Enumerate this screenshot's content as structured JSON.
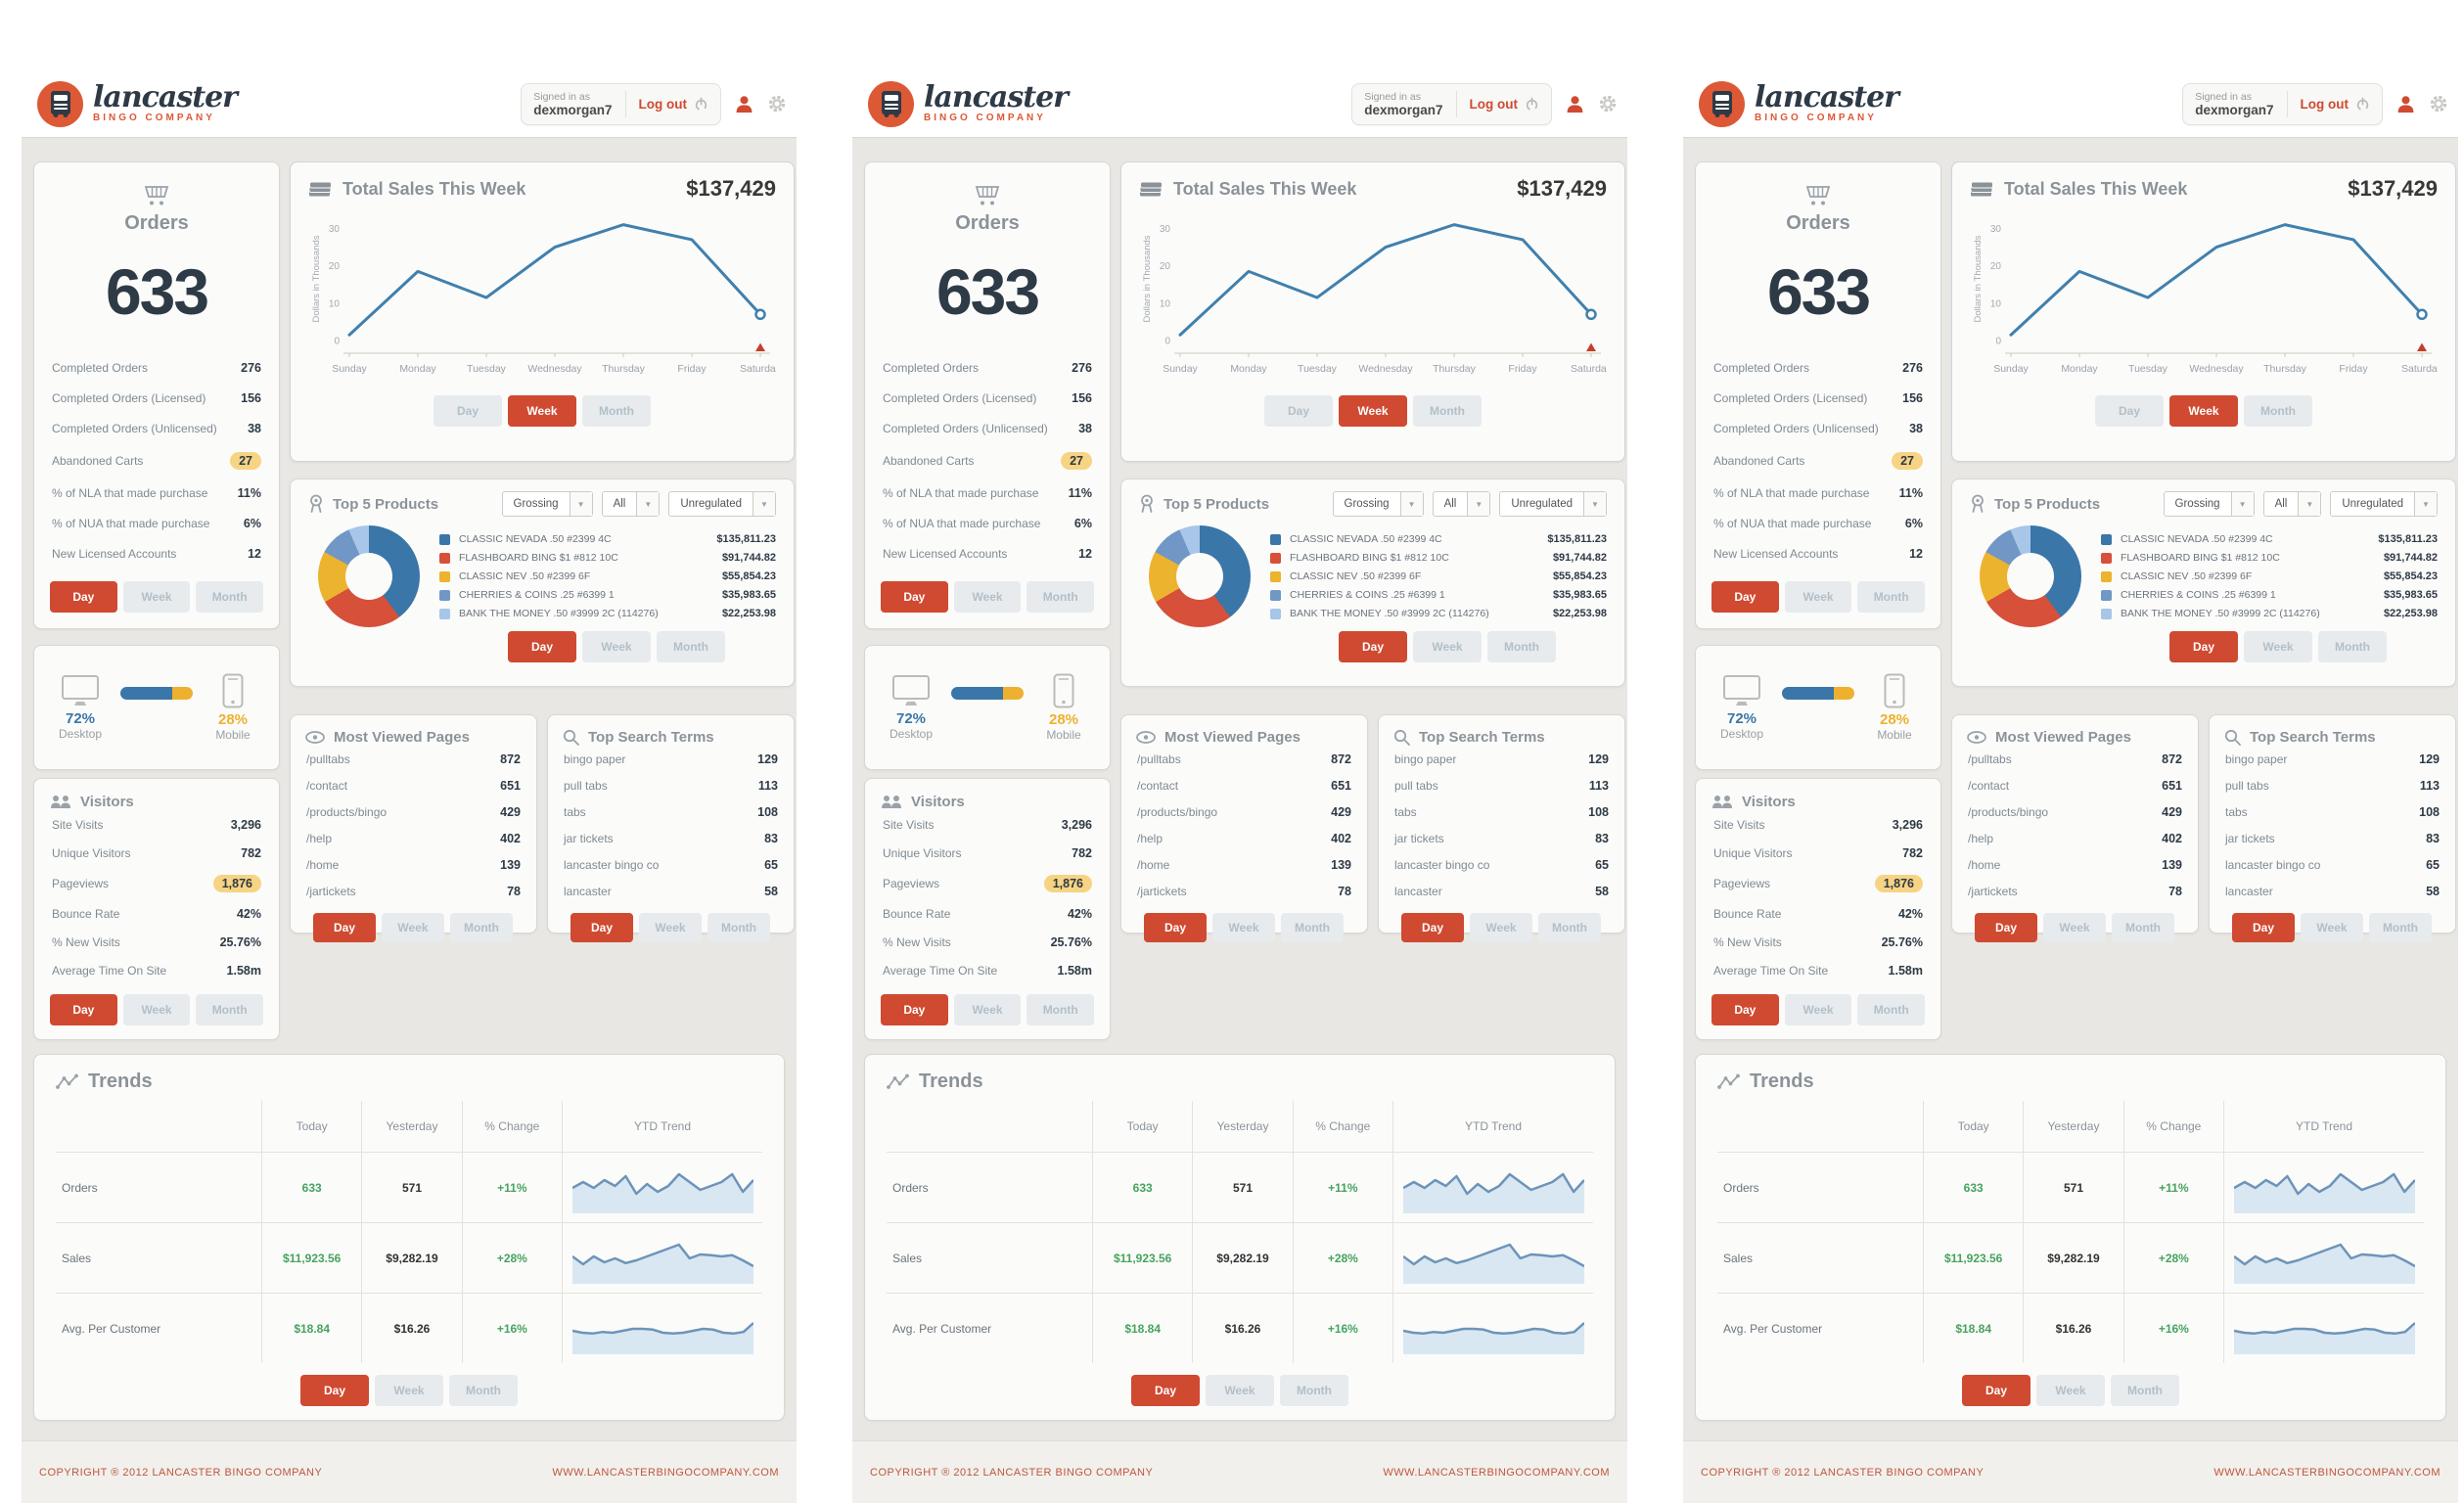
{
  "colors": {
    "accent_red": "#cf4a31",
    "navy": "#2e3a45",
    "chart_blue": "#4080ad",
    "yellow": "#eeb02f",
    "green": "#47a35f",
    "badge_bg": "#f6d483",
    "spark_line": "#6d94b8",
    "spark_fill": "#d9e7f2"
  },
  "header": {
    "brand_name": "lancaster",
    "brand_tagline": "BINGO COMPANY",
    "signed_in_label": "Signed in as",
    "username": "dexmorgan7",
    "logout_label": "Log out"
  },
  "controls": {
    "labels": [
      "Day",
      "Week",
      "Month"
    ]
  },
  "orders": {
    "title": "Orders",
    "total": "633",
    "rows": [
      {
        "label": "Completed Orders",
        "value": "276"
      },
      {
        "label": "Completed Orders (Licensed)",
        "value": "156"
      },
      {
        "label": "Completed Orders (Unlicensed)",
        "value": "38"
      },
      {
        "label": "Abandoned Carts",
        "value": "27",
        "badge": true
      },
      {
        "label": "% of NLA that made purchase",
        "value": "11%"
      },
      {
        "label": "% of NUA that made purchase",
        "value": "6%"
      },
      {
        "label": "New Licensed Accounts",
        "value": "12"
      }
    ],
    "active_control": "Day"
  },
  "total_sales": {
    "title": "Total Sales This Week",
    "amount": "$137,429",
    "active_control": "Week"
  },
  "top_products": {
    "title": "Top 5 Products",
    "filters": [
      "Grossing",
      "All",
      "Unregulated"
    ],
    "items": [
      {
        "name": "CLASSIC NEVADA .50 #2399 4C",
        "value": "$135,811.23",
        "color": "#3a76a8"
      },
      {
        "name": "FLASHBOARD BING $1 #812 10C",
        "value": "$91,744.82",
        "color": "#d6503a"
      },
      {
        "name": "CLASSIC NEV .50 #2399 6F",
        "value": "$55,854.23",
        "color": "#ecb32f"
      },
      {
        "name": "CHERRIES & COINS .25 #6399 1",
        "value": "$35,983.65",
        "color": "#7097c5"
      },
      {
        "name": "BANK THE MONEY .50 #3999 2C (114276)",
        "value": "$22,253.98",
        "color": "#a7c6e8"
      }
    ],
    "active_control": "Day"
  },
  "devices": {
    "desktop_pct": "72%",
    "desktop_label": "Desktop",
    "desktop_value": 72,
    "mobile_pct": "28%",
    "mobile_label": "Mobile",
    "mobile_value": 28
  },
  "visitors": {
    "title": "Visitors",
    "rows": [
      {
        "label": "Site Visits",
        "value": "3,296"
      },
      {
        "label": "Unique Visitors",
        "value": "782"
      },
      {
        "label": "Pageviews",
        "value": "1,876",
        "badge": true
      },
      {
        "label": "Bounce Rate",
        "value": "42%"
      },
      {
        "label": "% New Visits",
        "value": "25.76%"
      },
      {
        "label": "Average Time On Site",
        "value": "1.58m"
      }
    ],
    "active_control": "Day"
  },
  "most_viewed": {
    "title": "Most Viewed Pages",
    "rows": [
      {
        "label": "/pulltabs",
        "value": "872"
      },
      {
        "label": "/contact",
        "value": "651"
      },
      {
        "label": "/products/bingo",
        "value": "429"
      },
      {
        "label": "/help",
        "value": "402"
      },
      {
        "label": "/home",
        "value": "139"
      },
      {
        "label": "/jartickets",
        "value": "78"
      }
    ],
    "active_control": "Day"
  },
  "search_terms": {
    "title": "Top Search Terms",
    "rows": [
      {
        "label": "bingo paper",
        "value": "129"
      },
      {
        "label": "pull tabs",
        "value": "113"
      },
      {
        "label": "tabs",
        "value": "108"
      },
      {
        "label": "jar tickets",
        "value": "83"
      },
      {
        "label": "lancaster bingo co",
        "value": "65"
      },
      {
        "label": "lancaster",
        "value": "58"
      }
    ],
    "active_control": "Day"
  },
  "trends": {
    "title": "Trends",
    "columns": [
      "Today",
      "Yesterday",
      "% Change",
      "YTD Trend"
    ],
    "rows": [
      {
        "label": "Orders",
        "today": "633",
        "yesterday": "571",
        "change": "+11%"
      },
      {
        "label": "Sales",
        "today": "$11,923.56",
        "yesterday": "$9,282.19",
        "change": "+28%"
      },
      {
        "label": "Avg. Per Customer",
        "today": "$18.84",
        "yesterday": "$16.26",
        "change": "+16%"
      }
    ],
    "active_control": "Day"
  },
  "footer": {
    "copyright": "COPYRIGHT ® 2012 LANCASTER BINGO COMPANY",
    "url": "WWW.LANCASTERBINGOCOMPANY.COM"
  },
  "chart_data": [
    {
      "id": "total_sales_line",
      "type": "line",
      "title": "Total Sales This Week",
      "total_label": "$137,429",
      "categories": [
        "Sunday",
        "Monday",
        "Tuesday",
        "Wednesday",
        "Thursday",
        "Friday",
        "Saturday"
      ],
      "values": [
        1.5,
        18.5,
        11.5,
        25,
        31,
        27,
        7
      ],
      "ylabel": "Dollars in Thousands",
      "yticks": [
        0,
        10,
        20,
        30
      ],
      "ylim": [
        0,
        33
      ],
      "line_color": "#4080ad",
      "last_point_marker": "open-circle",
      "x_marker": {
        "category": "Saturday",
        "shape": "triangle-up",
        "color": "#c2402a"
      },
      "grid": false,
      "legend": "none"
    },
    {
      "id": "top_products_donut",
      "type": "pie",
      "donut": true,
      "labels": [
        "CLASSIC NEVADA .50 #2399 4C",
        "FLASHBOARD BING $1 #812 10C",
        "CLASSIC NEV .50 #2399 6F",
        "CHERRIES & COINS .25 #6399 1",
        "BANK THE MONEY .50 #3999 2C (114276)"
      ],
      "values": [
        135811.23,
        91744.82,
        55854.23,
        35983.65,
        22253.98
      ],
      "display_values": [
        "$135,811.23",
        "$91,744.82",
        "$55,854.23",
        "$35,983.65",
        "$22,253.98"
      ],
      "colors": [
        "#3a76a8",
        "#d6503a",
        "#ecb32f",
        "#7097c5",
        "#a7c6e8"
      ]
    },
    {
      "id": "ytd_sparklines",
      "type": "area",
      "note": "visual estimates of YTD trend sparklines, scale 0-10",
      "series": [
        {
          "name": "Orders",
          "values": [
            5,
            6.5,
            5,
            7,
            5.5,
            8,
            3.5,
            6,
            4,
            5.5,
            8.5,
            6.5,
            4.5,
            5.5,
            6.5,
            8.5,
            4,
            7
          ]
        },
        {
          "name": "Sales",
          "values": [
            5.5,
            3.5,
            5.5,
            4,
            5,
            3.8,
            4.5,
            5.5,
            6.5,
            7.5,
            8.5,
            5,
            6,
            5.8,
            5.5,
            5.8,
            4.5,
            3
          ]
        },
        {
          "name": "Avg. Per Customer",
          "values": [
            4.5,
            4,
            3.8,
            4.2,
            4,
            4.5,
            5,
            5,
            4.8,
            4,
            3.8,
            4,
            4.5,
            5,
            4.8,
            4,
            3.8,
            4.2,
            6.5
          ]
        }
      ],
      "line_color": "#6d94b8",
      "fill_color": "#d9e7f2"
    }
  ]
}
